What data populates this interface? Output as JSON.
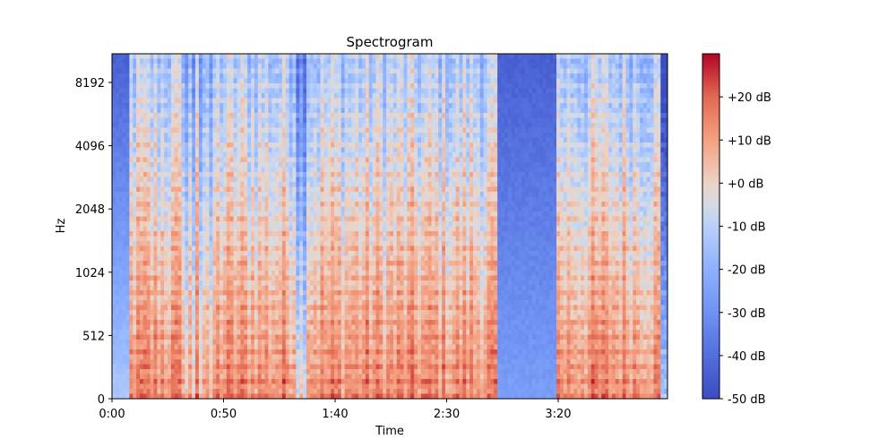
{
  "chart_data": {
    "type": "heatmap",
    "title": "Spectrogram",
    "xlabel": "Time",
    "ylabel": "Hz",
    "x_ticks": [
      "0:00",
      "0:50",
      "1:40",
      "2:30",
      "3:20"
    ],
    "y_ticks": [
      "0",
      "512",
      "1024",
      "2048",
      "4096",
      "8192"
    ],
    "y_scale": "log2-like (librosa log frequency axis)",
    "colormap": "coolwarm",
    "colorbar": {
      "ticks": [
        "-50 dB",
        "-40 dB",
        "-30 dB",
        "-20 dB",
        "-10 dB",
        "+0 dB",
        "+10 dB",
        "+20 dB"
      ],
      "range_db": [
        -50,
        30
      ]
    },
    "notes_visible": "energy strongest at low frequencies; a quiet low-energy section appears around 2:50–3:15"
  }
}
